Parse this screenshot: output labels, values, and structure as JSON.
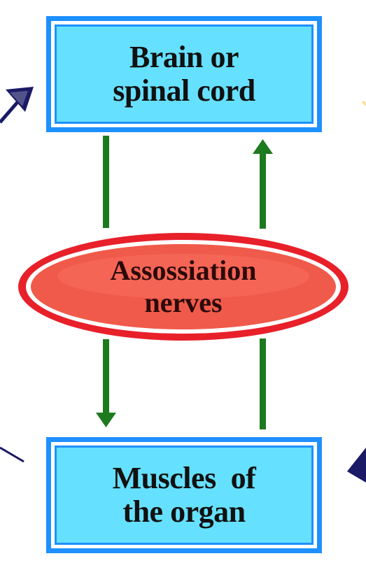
{
  "top_box": {
    "line1": "Brain or",
    "line2": "spinal cord"
  },
  "center_oval": {
    "line1": "Assossiation",
    "line2": "nerves"
  },
  "bottom_box": {
    "line1": "Muscles  of",
    "line2": "the organ"
  },
  "colors": {
    "box_fill": "#66e0ff",
    "box_border": "#1e90ff",
    "oval_fill": "#f05a4a",
    "oval_ring": "#e8202a",
    "vertical_arrows": "#1e7a1e",
    "side_arrows": "#1a1a66"
  }
}
